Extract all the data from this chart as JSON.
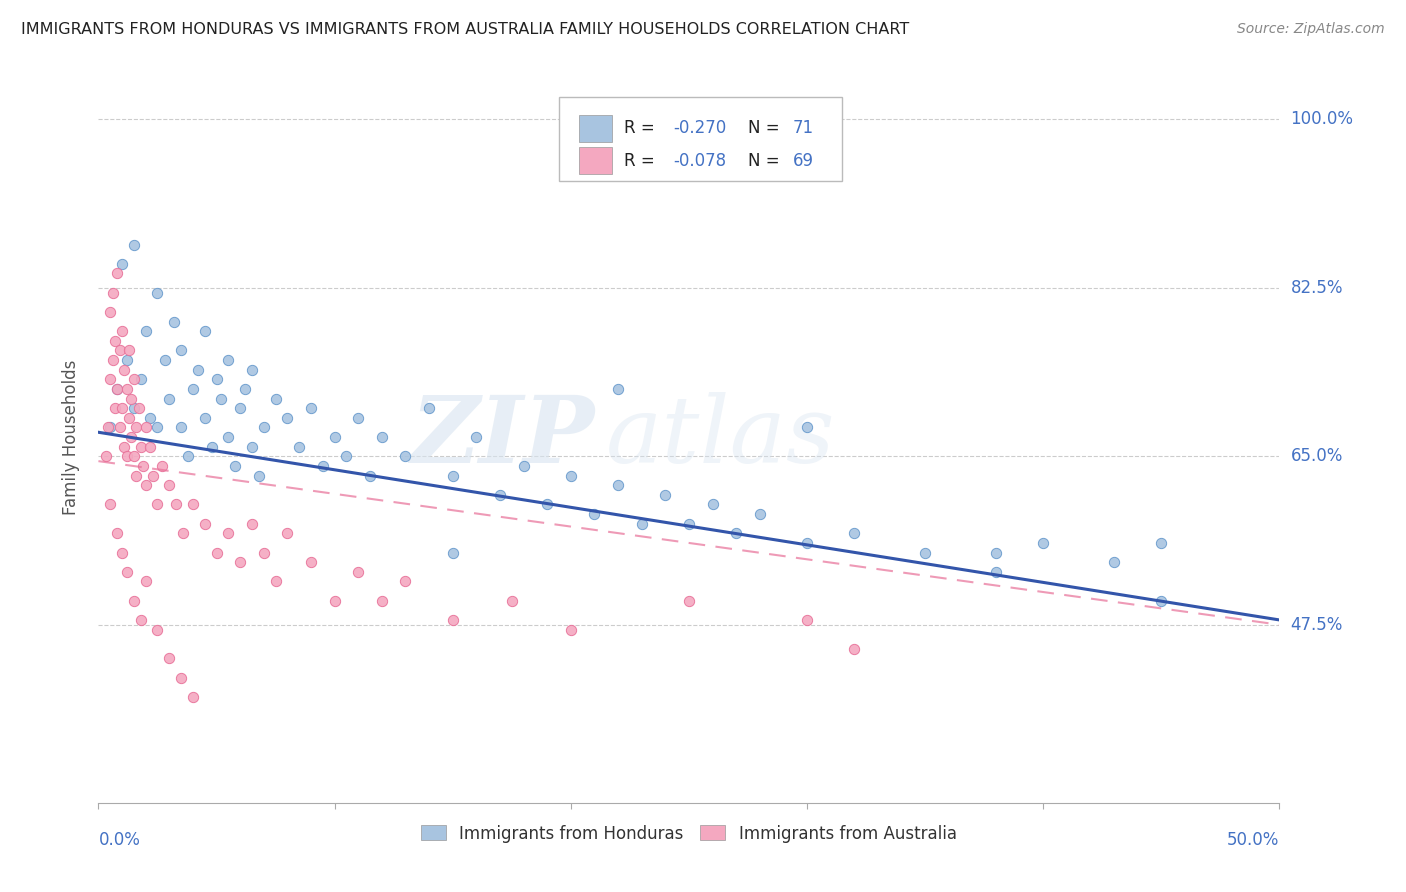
{
  "title": "IMMIGRANTS FROM HONDURAS VS IMMIGRANTS FROM AUSTRALIA FAMILY HOUSEHOLDS CORRELATION CHART",
  "source": "Source: ZipAtlas.com",
  "ylabel": "Family Households",
  "yaxis_labels": [
    "47.5%",
    "65.0%",
    "82.5%",
    "100.0%"
  ],
  "yaxis_values": [
    0.475,
    0.65,
    0.825,
    1.0
  ],
  "xlim": [
    0.0,
    0.5
  ],
  "ylim": [
    0.29,
    1.05
  ],
  "color_honduras": "#a8c4e0",
  "color_australia": "#f4a8c0",
  "color_honduras_edge": "#6699cc",
  "color_australia_edge": "#e87098",
  "color_line_honduras": "#3355aa",
  "color_line_australia": "#e87098",
  "color_text_blue": "#4472c4",
  "color_axis_blue": "#4472c4",
  "watermark_zip": "ZIP",
  "watermark_atlas": "atlas",
  "honduras_x": [
    0.005,
    0.008,
    0.01,
    0.012,
    0.015,
    0.015,
    0.018,
    0.02,
    0.022,
    0.025,
    0.025,
    0.028,
    0.03,
    0.032,
    0.035,
    0.035,
    0.038,
    0.04,
    0.042,
    0.045,
    0.045,
    0.048,
    0.05,
    0.052,
    0.055,
    0.055,
    0.058,
    0.06,
    0.062,
    0.065,
    0.065,
    0.068,
    0.07,
    0.075,
    0.08,
    0.085,
    0.09,
    0.095,
    0.1,
    0.105,
    0.11,
    0.115,
    0.12,
    0.13,
    0.14,
    0.15,
    0.16,
    0.17,
    0.18,
    0.19,
    0.2,
    0.21,
    0.22,
    0.23,
    0.24,
    0.25,
    0.26,
    0.27,
    0.28,
    0.3,
    0.32,
    0.35,
    0.38,
    0.4,
    0.43,
    0.45,
    0.22,
    0.3,
    0.38,
    0.45,
    0.15
  ],
  "honduras_y": [
    0.68,
    0.72,
    0.85,
    0.75,
    0.87,
    0.7,
    0.73,
    0.78,
    0.69,
    0.82,
    0.68,
    0.75,
    0.71,
    0.79,
    0.68,
    0.76,
    0.65,
    0.72,
    0.74,
    0.69,
    0.78,
    0.66,
    0.73,
    0.71,
    0.67,
    0.75,
    0.64,
    0.7,
    0.72,
    0.66,
    0.74,
    0.63,
    0.68,
    0.71,
    0.69,
    0.66,
    0.7,
    0.64,
    0.67,
    0.65,
    0.69,
    0.63,
    0.67,
    0.65,
    0.7,
    0.63,
    0.67,
    0.61,
    0.64,
    0.6,
    0.63,
    0.59,
    0.62,
    0.58,
    0.61,
    0.58,
    0.6,
    0.57,
    0.59,
    0.56,
    0.57,
    0.55,
    0.55,
    0.56,
    0.54,
    0.5,
    0.72,
    0.68,
    0.53,
    0.56,
    0.55
  ],
  "australia_x": [
    0.003,
    0.004,
    0.005,
    0.005,
    0.006,
    0.006,
    0.007,
    0.007,
    0.008,
    0.008,
    0.009,
    0.009,
    0.01,
    0.01,
    0.011,
    0.011,
    0.012,
    0.012,
    0.013,
    0.013,
    0.014,
    0.014,
    0.015,
    0.015,
    0.016,
    0.016,
    0.017,
    0.018,
    0.019,
    0.02,
    0.02,
    0.022,
    0.023,
    0.025,
    0.027,
    0.03,
    0.033,
    0.036,
    0.04,
    0.045,
    0.05,
    0.055,
    0.06,
    0.065,
    0.07,
    0.075,
    0.08,
    0.09,
    0.1,
    0.11,
    0.12,
    0.13,
    0.15,
    0.175,
    0.2,
    0.25,
    0.3,
    0.32,
    0.005,
    0.008,
    0.01,
    0.012,
    0.015,
    0.018,
    0.02,
    0.025,
    0.03,
    0.035,
    0.04
  ],
  "australia_y": [
    0.65,
    0.68,
    0.8,
    0.73,
    0.82,
    0.75,
    0.77,
    0.7,
    0.72,
    0.84,
    0.76,
    0.68,
    0.78,
    0.7,
    0.74,
    0.66,
    0.72,
    0.65,
    0.69,
    0.76,
    0.67,
    0.71,
    0.65,
    0.73,
    0.68,
    0.63,
    0.7,
    0.66,
    0.64,
    0.68,
    0.62,
    0.66,
    0.63,
    0.6,
    0.64,
    0.62,
    0.6,
    0.57,
    0.6,
    0.58,
    0.55,
    0.57,
    0.54,
    0.58,
    0.55,
    0.52,
    0.57,
    0.54,
    0.5,
    0.53,
    0.5,
    0.52,
    0.48,
    0.5,
    0.47,
    0.5,
    0.48,
    0.45,
    0.6,
    0.57,
    0.55,
    0.53,
    0.5,
    0.48,
    0.52,
    0.47,
    0.44,
    0.42,
    0.4
  ]
}
